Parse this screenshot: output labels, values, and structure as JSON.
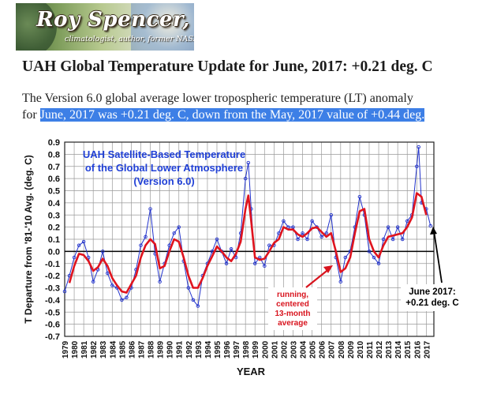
{
  "header": {
    "site_name": "Roy Spencer, Ph. D.",
    "tagline": "climatologist, author, former NASA scientist"
  },
  "post": {
    "title": "UAH Global Temperature Update for June, 2017: +0.21 deg. C",
    "body_line1": "The Version 6.0 global average lower tropospheric temperature (LT) anomaly",
    "body_line2_prefix": "for ",
    "body_line2_selected": "June, 2017 was +0.21 deg. C, down from the May, 2017 value of +0.44 deg."
  },
  "colors": {
    "selection": "#3d7fe6",
    "monthly_series": "#2233cc",
    "running_avg": "#e0141e",
    "title_text": "#1f3fd6",
    "annotation_text": "#d8141e"
  },
  "chart_data": {
    "type": "line",
    "title": "UAH Satellite-Based Temperature of the Global Lower Atmosphere (Version 6.0)",
    "title_lines": [
      "UAH Satellite-Based Temperature",
      "of the Global Lower Atmosphere",
      "(Version 6.0)"
    ],
    "xlabel": "YEAR",
    "ylabel": "T Departure from '81-'10 Avg. (deg. C)",
    "ylim": [
      -0.7,
      0.9
    ],
    "yticks": [
      "0.9",
      "0.8",
      "0.7",
      "0.6",
      "0.5",
      "0.4",
      "0.3",
      "0.2",
      "0.1",
      "0.0",
      "-0.1",
      "-0.2",
      "-0.3",
      "-0.4",
      "-0.5",
      "-0.6",
      "-0.7"
    ],
    "xticks": [
      "1979",
      "1980",
      "1981",
      "1982",
      "1983",
      "1984",
      "1985",
      "1986",
      "1987",
      "1988",
      "1989",
      "1990",
      "1991",
      "1992",
      "1993",
      "1994",
      "1995",
      "1996",
      "1997",
      "1998",
      "1999",
      "2000",
      "2001",
      "2002",
      "2003",
      "2004",
      "2005",
      "2006",
      "2007",
      "2008",
      "2009",
      "2010",
      "2011",
      "2012",
      "2013",
      "2014",
      "2015",
      "2016",
      "2017"
    ],
    "grid": true,
    "annotations": {
      "running_label": [
        "running,",
        "centered",
        "13-month",
        "average"
      ],
      "latest_label": [
        "June 2017:",
        "+0.21 deg. C"
      ]
    },
    "series": [
      {
        "name": "running, centered 13-month average",
        "x": [
          1979.5,
          1980.0,
          1980.5,
          1981.0,
          1981.5,
          1982.0,
          1982.5,
          1983.0,
          1983.5,
          1984.0,
          1984.5,
          1985.0,
          1985.5,
          1986.0,
          1986.5,
          1987.0,
          1987.5,
          1988.0,
          1988.5,
          1989.0,
          1989.5,
          1990.0,
          1990.5,
          1991.0,
          1991.5,
          1992.0,
          1992.5,
          1993.0,
          1993.5,
          1994.0,
          1994.5,
          1995.0,
          1995.5,
          1996.0,
          1996.5,
          1997.0,
          1997.5,
          1998.0,
          1998.3,
          1998.6,
          1999.0,
          1999.5,
          2000.0,
          2000.5,
          2001.0,
          2001.5,
          2002.0,
          2002.5,
          2003.0,
          2003.5,
          2004.0,
          2004.5,
          2005.0,
          2005.5,
          2006.0,
          2006.5,
          2007.0,
          2007.5,
          2008.0,
          2008.5,
          2009.0,
          2009.5,
          2010.0,
          2010.5,
          2011.0,
          2011.5,
          2012.0,
          2012.5,
          2013.0,
          2013.5,
          2014.0,
          2014.5,
          2015.0,
          2015.5,
          2016.0,
          2016.5,
          2017.0
        ],
        "y": [
          -0.26,
          -0.12,
          -0.02,
          -0.03,
          -0.08,
          -0.16,
          -0.13,
          -0.06,
          -0.12,
          -0.22,
          -0.28,
          -0.33,
          -0.34,
          -0.27,
          -0.2,
          -0.05,
          0.05,
          0.1,
          0.06,
          -0.14,
          -0.12,
          0.0,
          0.1,
          0.08,
          -0.05,
          -0.2,
          -0.3,
          -0.3,
          -0.22,
          -0.12,
          -0.04,
          0.04,
          0.0,
          -0.05,
          -0.08,
          -0.02,
          0.08,
          0.35,
          0.46,
          0.25,
          -0.05,
          -0.07,
          -0.06,
          0.0,
          0.07,
          0.1,
          0.2,
          0.18,
          0.18,
          0.14,
          0.12,
          0.15,
          0.19,
          0.2,
          0.16,
          0.12,
          0.15,
          0.0,
          -0.17,
          -0.14,
          -0.05,
          0.15,
          0.33,
          0.35,
          0.1,
          0.0,
          -0.05,
          0.05,
          0.12,
          0.13,
          0.14,
          0.15,
          0.2,
          0.28,
          0.48,
          0.45,
          0.3
        ]
      },
      {
        "name": "monthly",
        "x": [
          1979.0,
          1979.5,
          1980.0,
          1980.5,
          1981.0,
          1981.5,
          1982.0,
          1982.5,
          1983.0,
          1983.5,
          1984.0,
          1984.5,
          1985.0,
          1985.5,
          1986.0,
          1986.5,
          1987.0,
          1987.5,
          1988.0,
          1988.5,
          1989.0,
          1989.5,
          1990.0,
          1990.5,
          1991.0,
          1991.5,
          1992.0,
          1992.5,
          1993.0,
          1993.5,
          1994.0,
          1994.5,
          1995.0,
          1995.5,
          1996.0,
          1996.5,
          1997.0,
          1997.5,
          1998.0,
          1998.3,
          1998.6,
          1999.0,
          1999.5,
          2000.0,
          2000.5,
          2001.0,
          2001.5,
          2002.0,
          2002.5,
          2003.0,
          2003.5,
          2004.0,
          2004.5,
          2005.0,
          2005.5,
          2006.0,
          2006.5,
          2007.0,
          2007.5,
          2008.0,
          2008.5,
          2009.0,
          2009.5,
          2010.0,
          2010.5,
          2011.0,
          2011.5,
          2012.0,
          2012.5,
          2013.0,
          2013.5,
          2014.0,
          2014.5,
          2015.0,
          2015.5,
          2016.0,
          2016.2,
          2016.5,
          2017.0,
          2017.45
        ],
        "y": [
          -0.33,
          -0.2,
          -0.05,
          0.05,
          0.08,
          -0.05,
          -0.25,
          -0.15,
          0.0,
          -0.18,
          -0.28,
          -0.3,
          -0.4,
          -0.38,
          -0.3,
          -0.15,
          0.05,
          0.12,
          0.35,
          -0.02,
          -0.25,
          -0.1,
          0.05,
          0.15,
          0.2,
          -0.08,
          -0.3,
          -0.4,
          -0.45,
          -0.2,
          -0.1,
          0.0,
          0.1,
          0.0,
          -0.1,
          0.02,
          -0.05,
          0.15,
          0.6,
          0.73,
          0.35,
          -0.1,
          -0.05,
          -0.12,
          0.05,
          0.05,
          0.15,
          0.25,
          0.2,
          0.2,
          0.1,
          0.15,
          0.1,
          0.25,
          0.2,
          0.12,
          0.15,
          0.3,
          -0.05,
          -0.25,
          -0.05,
          0.0,
          0.2,
          0.45,
          0.3,
          0.0,
          -0.05,
          -0.1,
          0.1,
          0.2,
          0.1,
          0.2,
          0.1,
          0.25,
          0.3,
          0.7,
          0.86,
          0.4,
          0.35,
          0.21
        ]
      }
    ]
  }
}
